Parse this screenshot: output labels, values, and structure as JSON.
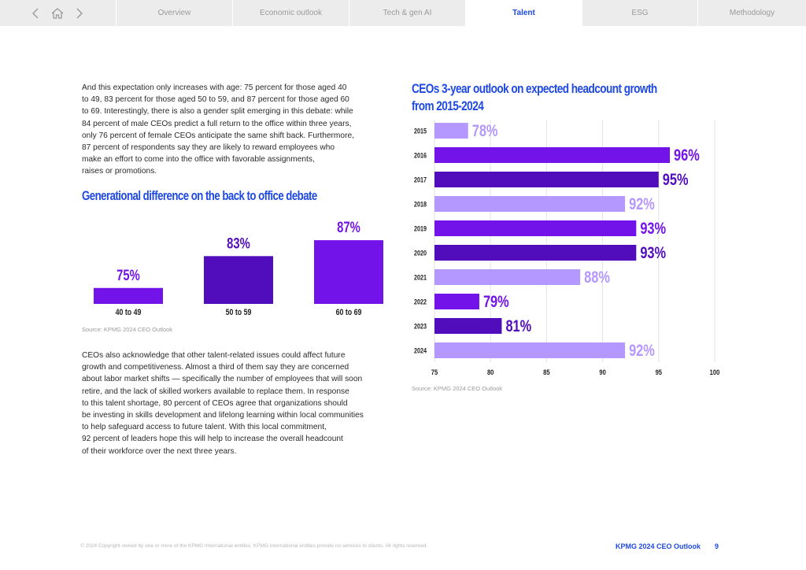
{
  "nav": {
    "tabs": [
      {
        "label": "Overview",
        "active": false
      },
      {
        "label": "Economic outlook",
        "active": false
      },
      {
        "label": "Tech & gen AI",
        "active": false
      },
      {
        "label": "Talent",
        "active": true
      },
      {
        "label": "ESG",
        "active": false
      },
      {
        "label": "Methodology",
        "active": false
      }
    ],
    "controls": {
      "back_icon": "chevron-left-icon",
      "home_icon": "home-icon",
      "forward_icon": "chevron-right-icon"
    }
  },
  "intro": {
    "lines": [
      "And this expectation only increases with age: 75 percent for those aged 40",
      "to 49, 83 percent for those aged 50 to 59, and 87 percent for those aged 60",
      "to 69. Interestingly, there is also a gender split emerging in this debate: while",
      "84 percent of male CEOs predict a full return to the office within three years,",
      "only 76 percent of female CEOs anticipate the same shift back. Furthermore,",
      "87 percent of respondents say they are likely to reward employees who",
      "make an effort to come into the office with favorable assignments,",
      "raises or promotions."
    ]
  },
  "talent_text": {
    "lines": [
      "CEOs also acknowledge that other talent-related issues could affect future",
      "growth and competitiveness. Almost a third of them say they are concerned",
      "about labor market shifts — specifically the number of employees that will soon",
      "retire, and the lack of skilled workers available to replace them. In response",
      "to this talent shortage, 80 percent of CEOs agree that organizations should",
      "be investing in skills development and lifelong learning within local communities",
      "to help safeguard access to future talent. With this local commitment,",
      "92 percent of leaders hope this will help to increase the overall headcount",
      "of their workforce over the next three years."
    ]
  },
  "colors": {
    "accent": "#1e49e2",
    "purple_bright": "#7213ea",
    "purple_mid": "#510dbc",
    "purple_dark": "#5c14cf",
    "lavender": "#b497ff"
  },
  "chart_data": [
    {
      "type": "bar",
      "title": "Generational difference on the back to office debate",
      "categories": [
        "40 to 49",
        "50 to 59",
        "60 to 69"
      ],
      "values": [
        75,
        83,
        87
      ],
      "labels": [
        "75%",
        "83%",
        "87%"
      ],
      "colors": [
        "#7213ea",
        "#510dbc",
        "#7213ea"
      ],
      "source": "Source: KPMG 2024 CEO Outlook"
    },
    {
      "type": "bar",
      "orientation": "horizontal",
      "title_lines": [
        "CEOs 3-year outlook on expected headcount growth",
        "from 2015-2024"
      ],
      "categories": [
        "2015",
        "2016",
        "2017",
        "2018",
        "2019",
        "2020",
        "2021",
        "2022",
        "2023",
        "2024"
      ],
      "values": [
        78,
        96,
        95,
        92,
        93,
        93,
        88,
        79,
        81,
        92
      ],
      "labels": [
        "78%",
        "96%",
        "95%",
        "92%",
        "93%",
        "93%",
        "88%",
        "79%",
        "81%",
        "92%"
      ],
      "colors": [
        "#b497ff",
        "#7213ea",
        "#510dbc",
        "#b497ff",
        "#7213ea",
        "#510dbc",
        "#b497ff",
        "#7213ea",
        "#510dbc",
        "#b497ff"
      ],
      "xlim": [
        75,
        100
      ],
      "xticks": [
        "75",
        "80",
        "85",
        "90",
        "95",
        "100"
      ],
      "grid": true,
      "source": "Source: KPMG 2024 CEO Outlook"
    }
  ],
  "footer": {
    "copyright": "© 2024 Copyright owned by one or more of the KPMG International entities. KPMG International entities provide no services to clients. All rights reserved.",
    "brand": "KPMG 2024 CEO Outlook",
    "page": "9"
  }
}
